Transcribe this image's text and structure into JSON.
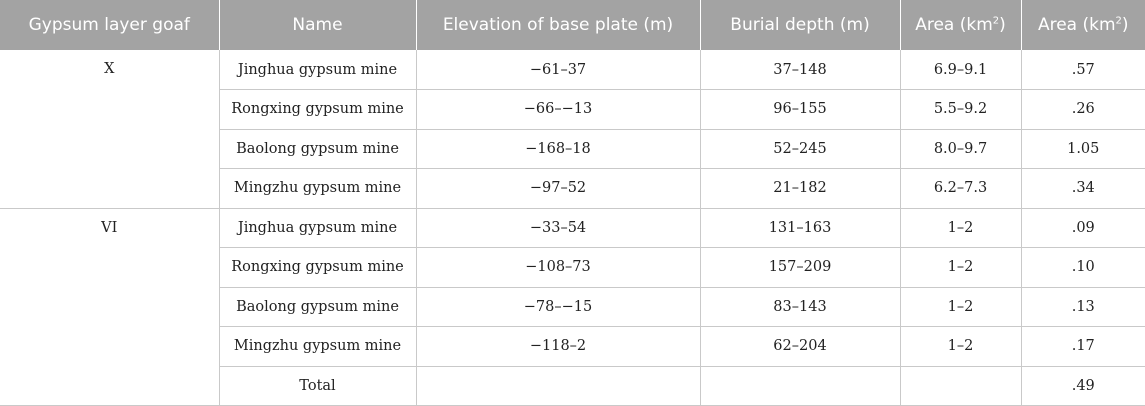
{
  "table": {
    "headers": [
      {
        "text": "Gypsum layer goaf",
        "sup": ""
      },
      {
        "text": "Name",
        "sup": ""
      },
      {
        "text": "Elevation of base plate (m)",
        "sup": ""
      },
      {
        "text": "Burial depth (m)",
        "sup": ""
      },
      {
        "text": "Area (km",
        "sup": "2",
        "close": ")"
      },
      {
        "text": "Area (km",
        "sup": "2",
        "close": ")"
      }
    ],
    "groups": [
      {
        "layer": "X",
        "rows": [
          {
            "name": "Jinghua gypsum mine",
            "elevation": "−61–37",
            "depth": "37–148",
            "area1": "6.9–9.1",
            "area2": ".57"
          },
          {
            "name": "Rongxing gypsum mine",
            "elevation": "−66–−13",
            "depth": "96–155",
            "area1": "5.5–9.2",
            "area2": ".26"
          },
          {
            "name": "Baolong gypsum mine",
            "elevation": "−168–18",
            "depth": "52–245",
            "area1": "8.0–9.7",
            "area2": "1.05"
          },
          {
            "name": "Mingzhu gypsum mine",
            "elevation": "−97–52",
            "depth": "21–182",
            "area1": "6.2–7.3",
            "area2": ".34"
          }
        ]
      },
      {
        "layer": "VI",
        "rows": [
          {
            "name": "Jinghua gypsum mine",
            "elevation": "−33–54",
            "depth": "131–163",
            "area1": "1–2",
            "area2": ".09"
          },
          {
            "name": "Rongxing gypsum mine",
            "elevation": "−108–73",
            "depth": "157–209",
            "area1": "1–2",
            "area2": ".10"
          },
          {
            "name": "Baolong gypsum mine",
            "elevation": "−78–−15",
            "depth": "83–143",
            "area1": "1–2",
            "area2": ".13"
          },
          {
            "name": "Mingzhu gypsum mine",
            "elevation": "−118–2",
            "depth": "62–204",
            "area1": "1–2",
            "area2": ".17"
          },
          {
            "name": "Total",
            "elevation": "",
            "depth": "",
            "area1": "",
            "area2": ".49"
          }
        ]
      }
    ]
  }
}
